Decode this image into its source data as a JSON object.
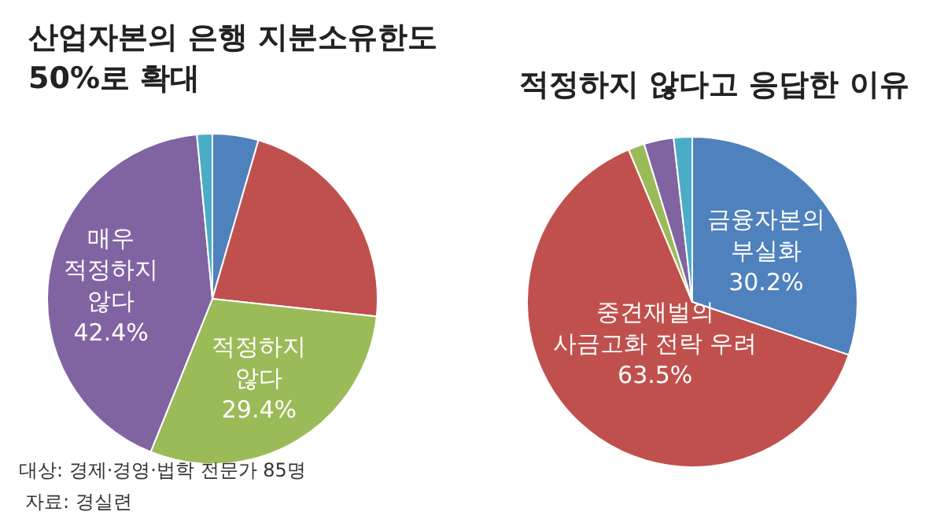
{
  "chart_data": [
    {
      "type": "pie",
      "title": "산업자본의 은행 지분소유한도\n50%로 확대",
      "categories": [
        null,
        null,
        "적정하지\n않다",
        "매우\n적정하지\n않다",
        null
      ],
      "values": [
        4.5,
        22.2,
        29.4,
        42.4,
        1.5
      ],
      "colors": [
        "#4f81bd",
        "#c0504d",
        "#9bbb59",
        "#8064a2",
        "#4bacc6"
      ],
      "value_labels": [
        null,
        null,
        "29.4%",
        "42.4%",
        null
      ],
      "annotations": [
        "대상: 경제·경영·법학 전문가 85명",
        "자료: 경실련"
      ]
    },
    {
      "type": "pie",
      "title": "적정하지 않다고 응답한 이유",
      "categories": [
        "금융자본의\n부실화",
        "중견재벌의\n사금고화 전락 우려",
        null,
        null,
        null
      ],
      "values": [
        30.2,
        63.5,
        1.6,
        2.9,
        1.8
      ],
      "colors": [
        "#4f81bd",
        "#c0504d",
        "#9bbb59",
        "#8064a2",
        "#4bacc6"
      ],
      "value_labels": [
        "30.2%",
        "63.5%",
        null,
        null,
        null
      ]
    }
  ]
}
